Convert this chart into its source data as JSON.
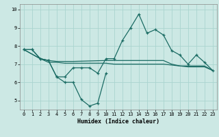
{
  "xlabel": "Humidex (Indice chaleur)",
  "bg_color": "#cce8e4",
  "line_color": "#1a6b63",
  "grid_color": "#aad4cf",
  "xlim": [
    -0.5,
    23.5
  ],
  "ylim": [
    4.5,
    10.3
  ],
  "xticks": [
    0,
    1,
    2,
    3,
    4,
    5,
    6,
    7,
    8,
    9,
    10,
    11,
    12,
    13,
    14,
    15,
    16,
    17,
    18,
    19,
    20,
    21,
    22,
    23
  ],
  "yticks": [
    5,
    6,
    7,
    8,
    9,
    10
  ],
  "line1_x": [
    0,
    1,
    2,
    3,
    4,
    5,
    6,
    7,
    8,
    9,
    10,
    11,
    12,
    13,
    14,
    15,
    16,
    17,
    18,
    19,
    20,
    21,
    22,
    23
  ],
  "line1_y": [
    7.8,
    7.8,
    7.3,
    7.2,
    6.3,
    6.3,
    6.8,
    6.8,
    6.8,
    6.5,
    7.3,
    7.3,
    8.3,
    9.0,
    9.75,
    8.7,
    8.9,
    8.6,
    7.75,
    7.5,
    7.0,
    7.5,
    7.1,
    6.65
  ],
  "line2_x": [
    0,
    1,
    2,
    3,
    4,
    5,
    6,
    7,
    8,
    9,
    10
  ],
  "line2_y": [
    7.8,
    7.8,
    7.3,
    7.2,
    6.3,
    6.0,
    6.0,
    5.05,
    4.7,
    4.85,
    6.5
  ],
  "line3_x": [
    0,
    2,
    3,
    4,
    5,
    6,
    10,
    11,
    12,
    13,
    14,
    15,
    16,
    17,
    18,
    19,
    20,
    21,
    22,
    23
  ],
  "line3_y": [
    7.8,
    7.3,
    7.2,
    7.15,
    7.15,
    7.15,
    7.2,
    7.2,
    7.2,
    7.2,
    7.2,
    7.2,
    7.2,
    7.2,
    7.0,
    6.9,
    6.9,
    6.9,
    6.9,
    6.65
  ],
  "line4_x": [
    0,
    2,
    3,
    4,
    5,
    6,
    10,
    11,
    12,
    13,
    14,
    15,
    16,
    17,
    18,
    19,
    20,
    21,
    22,
    23
  ],
  "line4_y": [
    7.8,
    7.3,
    7.1,
    7.1,
    7.05,
    7.05,
    7.05,
    7.0,
    7.0,
    7.0,
    7.0,
    7.0,
    7.0,
    7.0,
    6.95,
    6.9,
    6.85,
    6.85,
    6.85,
    6.65
  ]
}
